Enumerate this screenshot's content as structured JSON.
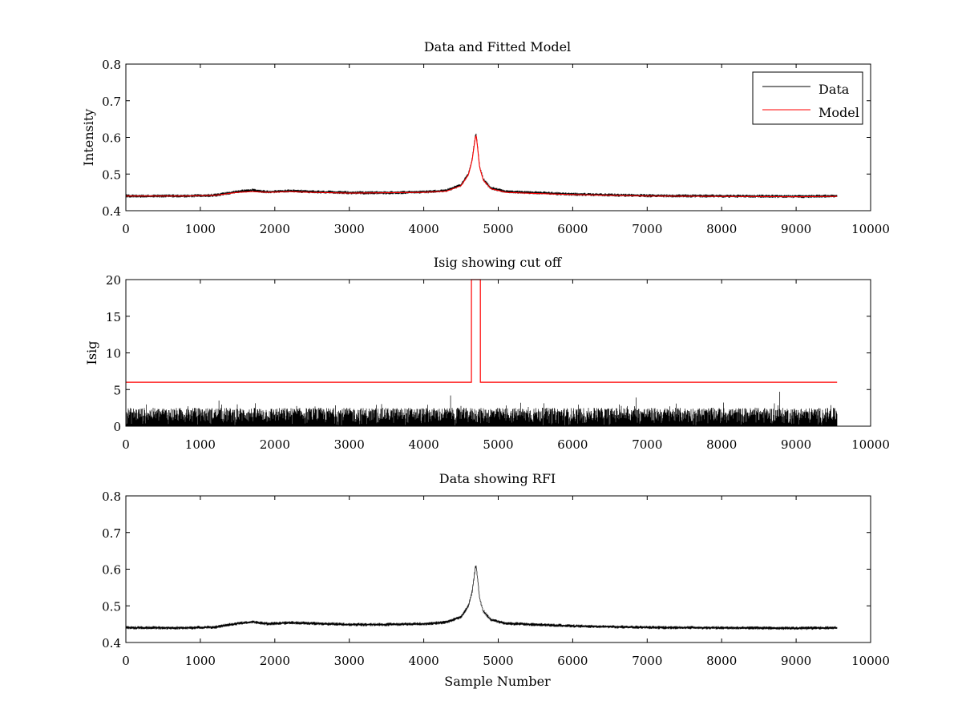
{
  "chart_data": [
    {
      "type": "line",
      "title": "Data and Fitted Model",
      "xlabel": "",
      "ylabel": "Intensity",
      "xlim": [
        0,
        10000
      ],
      "ylim": [
        0.4,
        0.8
      ],
      "xticks": [
        "0",
        "1000",
        "2000",
        "3000",
        "4000",
        "5000",
        "6000",
        "7000",
        "8000",
        "9000",
        "10000"
      ],
      "yticks": [
        "0.4",
        "0.5",
        "0.6",
        "0.7",
        "0.8"
      ],
      "legend_position": "top-right",
      "grid": false,
      "series": [
        {
          "name": "Data",
          "color": "#000000",
          "noise": 0.004,
          "x": [
            0,
            800,
            1200,
            1500,
            1700,
            1900,
            2200,
            2500,
            3000,
            3500,
            4000,
            4300,
            4500,
            4600,
            4650,
            4680,
            4700,
            4720,
            4750,
            4800,
            4900,
            5100,
            5500,
            6000,
            7000,
            8000,
            9000,
            9550
          ],
          "values": [
            0.44,
            0.44,
            0.442,
            0.452,
            0.456,
            0.451,
            0.454,
            0.452,
            0.449,
            0.449,
            0.451,
            0.455,
            0.47,
            0.5,
            0.54,
            0.585,
            0.615,
            0.58,
            0.52,
            0.485,
            0.462,
            0.452,
            0.449,
            0.445,
            0.441,
            0.44,
            0.439,
            0.44
          ]
        },
        {
          "name": "Model",
          "color": "#ff0000",
          "noise": 0,
          "x": [
            0,
            800,
            1200,
            1500,
            1700,
            1900,
            2200,
            2500,
            3000,
            3500,
            4000,
            4300,
            4500,
            4600,
            4650,
            4680,
            4700,
            4720,
            4750,
            4800,
            4900,
            5100,
            5500,
            6000,
            7000,
            8000,
            9000,
            9550
          ],
          "values": [
            0.44,
            0.44,
            0.442,
            0.45,
            0.452,
            0.45,
            0.452,
            0.45,
            0.448,
            0.449,
            0.45,
            0.453,
            0.468,
            0.498,
            0.538,
            0.582,
            0.61,
            0.578,
            0.518,
            0.483,
            0.46,
            0.45,
            0.447,
            0.444,
            0.44,
            0.439,
            0.438,
            0.439
          ]
        }
      ]
    },
    {
      "type": "line",
      "title": "Isig showing cut off",
      "xlabel": "",
      "ylabel": "Isig",
      "xlim": [
        0,
        10000
      ],
      "ylim": [
        0,
        20
      ],
      "xticks": [
        "0",
        "1000",
        "2000",
        "3000",
        "4000",
        "5000",
        "6000",
        "7000",
        "8000",
        "9000",
        "10000"
      ],
      "yticks": [
        "0",
        "5",
        "10",
        "15",
        "20"
      ],
      "grid": false,
      "series": [
        {
          "color": "#000000",
          "style": "bars",
          "x": [
            0,
            9550
          ],
          "values": [
            0,
            0
          ],
          "typical_max": 2.5,
          "peaks": [
            [
              1250,
              3.5
            ],
            [
              4360,
              4.2
            ],
            [
              6850,
              3.9
            ],
            [
              8780,
              4.7
            ]
          ]
        },
        {
          "color": "#ff0000",
          "style": "step",
          "x": [
            0,
            4640,
            4640,
            4760,
            4760,
            9550
          ],
          "values": [
            6,
            6,
            20,
            20,
            6,
            6
          ]
        }
      ]
    },
    {
      "type": "line",
      "title": "Data showing RFI",
      "xlabel": "Sample Number",
      "ylabel": "",
      "xlim": [
        0,
        10000
      ],
      "ylim": [
        0.4,
        0.8
      ],
      "xticks": [
        "0",
        "1000",
        "2000",
        "3000",
        "4000",
        "5000",
        "6000",
        "7000",
        "8000",
        "9000",
        "10000"
      ],
      "yticks": [
        "0.4",
        "0.5",
        "0.6",
        "0.7",
        "0.8"
      ],
      "grid": false,
      "series": [
        {
          "color": "#000000",
          "noise": 0.004,
          "x": [
            0,
            800,
            1200,
            1500,
            1700,
            1900,
            2200,
            2500,
            3000,
            3500,
            4000,
            4300,
            4500,
            4600,
            4650,
            4680,
            4700,
            4720,
            4750,
            4800,
            4900,
            5100,
            5500,
            6000,
            7000,
            8000,
            9000,
            9550
          ],
          "values": [
            0.44,
            0.44,
            0.442,
            0.452,
            0.456,
            0.451,
            0.454,
            0.452,
            0.449,
            0.449,
            0.451,
            0.455,
            0.47,
            0.5,
            0.54,
            0.585,
            0.615,
            0.58,
            0.52,
            0.485,
            0.462,
            0.452,
            0.449,
            0.445,
            0.441,
            0.44,
            0.439,
            0.44
          ]
        }
      ]
    }
  ]
}
